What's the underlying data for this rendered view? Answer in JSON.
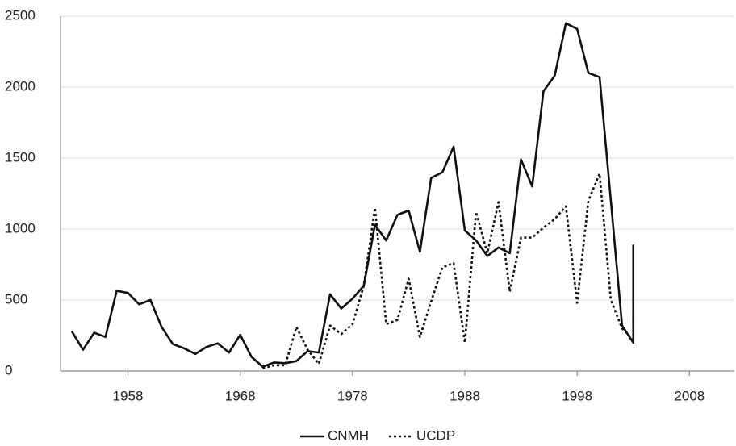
{
  "chart_data": {
    "type": "line",
    "series": [
      {
        "name": "CNMH",
        "color": "#111111",
        "dash": "solid",
        "x": [
          1953,
          1954,
          1955,
          1956,
          1957,
          1958,
          1959,
          1960,
          1961,
          1962,
          1963,
          1964,
          1965,
          1966,
          1967,
          1968,
          1969,
          1970,
          1971,
          1972,
          1973,
          1974,
          1975,
          1976,
          1977,
          1978,
          1979,
          1980,
          1981,
          1982,
          1983,
          1984,
          1985,
          1986,
          1987,
          1988,
          1989,
          1990,
          1991,
          1992,
          1993,
          1994,
          1995,
          1996,
          1997,
          1998,
          1999,
          2000,
          2001,
          2002,
          2003,
          2003
        ],
        "values": [
          280,
          150,
          270,
          240,
          565,
          550,
          470,
          500,
          310,
          190,
          160,
          120,
          170,
          195,
          130,
          255,
          100,
          30,
          60,
          55,
          70,
          140,
          130,
          540,
          440,
          510,
          600,
          1030,
          920,
          1100,
          1130,
          840,
          1360,
          1400,
          1580,
          990,
          920,
          810,
          870,
          830,
          1490,
          1300,
          1970,
          2080,
          2450,
          2410,
          2100,
          2070,
          1200,
          320,
          200,
          890
        ]
      },
      {
        "name": "UCDP",
        "color": "#111111",
        "dash": "dotted",
        "x": [
          1970,
          1971,
          1972,
          1973,
          1974,
          1975,
          1976,
          1977,
          1978,
          1979,
          1980,
          1981,
          1982,
          1983,
          1984,
          1985,
          1986,
          1987,
          1988,
          1989,
          1990,
          1991,
          1992,
          1993,
          1994,
          1995,
          1996,
          1997,
          1998,
          1999,
          2000,
          2001,
          2002,
          2003,
          2003
        ],
        "values": [
          20,
          40,
          40,
          310,
          150,
          50,
          320,
          260,
          330,
          600,
          1150,
          330,
          360,
          650,
          240,
          490,
          730,
          760,
          200,
          1120,
          830,
          1190,
          560,
          940,
          940,
          1010,
          1070,
          1160,
          480,
          1200,
          1390,
          500,
          300,
          220,
          420
        ]
      }
    ],
    "xlim": [
      1952,
      2012
    ],
    "xticks": [
      1958,
      1968,
      1978,
      1988,
      1998,
      2008
    ],
    "ylim": [
      0,
      2500
    ],
    "yticks": [
      0,
      500,
      1000,
      1500,
      2000,
      2500
    ],
    "grid": true,
    "legend": "bottom"
  }
}
